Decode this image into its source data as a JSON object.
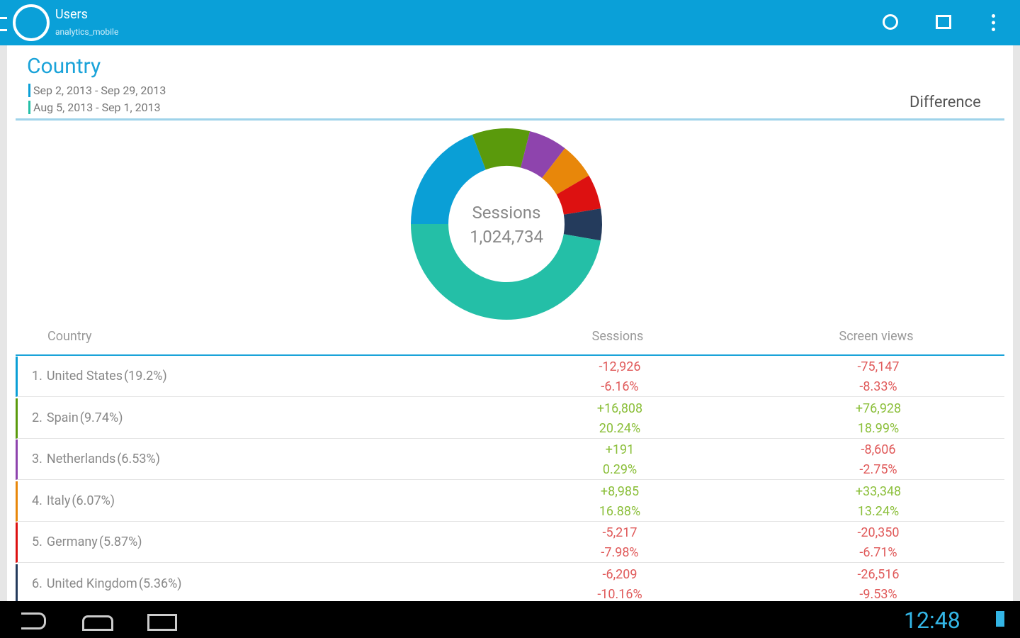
{
  "app_bar": {
    "title": "Users",
    "subtitle": "analytics_mobile"
  },
  "report": {
    "title": "Country",
    "date_ranges": [
      "Sep 2, 2013 - Sep 29, 2013",
      "Aug 5, 2013 - Sep 1, 2013"
    ],
    "mode": "Difference"
  },
  "chart_data": {
    "type": "donut",
    "center_title": "Sessions",
    "center_text": "1,024,734",
    "categories": [
      "United States",
      "Spain",
      "Netherlands",
      "Italy",
      "Germany",
      "United Kingdom",
      null
    ],
    "values": [
      19.2,
      9.74,
      6.53,
      6.07,
      5.87,
      5.36,
      47.23
    ],
    "value_labels": [
      "(19.2%)",
      "(9.74%)",
      "(6.53%)",
      "(6.07%)",
      "(5.87%)",
      "(5.36%)",
      null
    ],
    "colors": [
      "#0a9fd6",
      "#5a9a0c",
      "#8e44ad",
      "#e8870a",
      "#dd1111",
      "#243b5c",
      "#24bfa7"
    ]
  },
  "table": {
    "headers": [
      "Country",
      "Sessions",
      "Screen views"
    ],
    "rows": [
      [
        "1.",
        "-12,926",
        "-6.16%",
        "-75,147",
        "-8.33%"
      ],
      [
        "2.",
        "+16,808",
        "20.24%",
        "+76,928",
        "18.99%"
      ],
      [
        "3.",
        "+191",
        "0.29%",
        "-8,606",
        "-2.75%"
      ],
      [
        "4.",
        "+8,985",
        "16.88%",
        "+33,348",
        "13.24%"
      ],
      [
        "5.",
        "-5,217",
        "-7.98%",
        "-20,350",
        "-6.71%"
      ],
      [
        "6.",
        "-6,209",
        "-10.16%",
        "-26,516",
        "-9.53%"
      ]
    ]
  },
  "status_bar": {
    "time": "12:48"
  }
}
